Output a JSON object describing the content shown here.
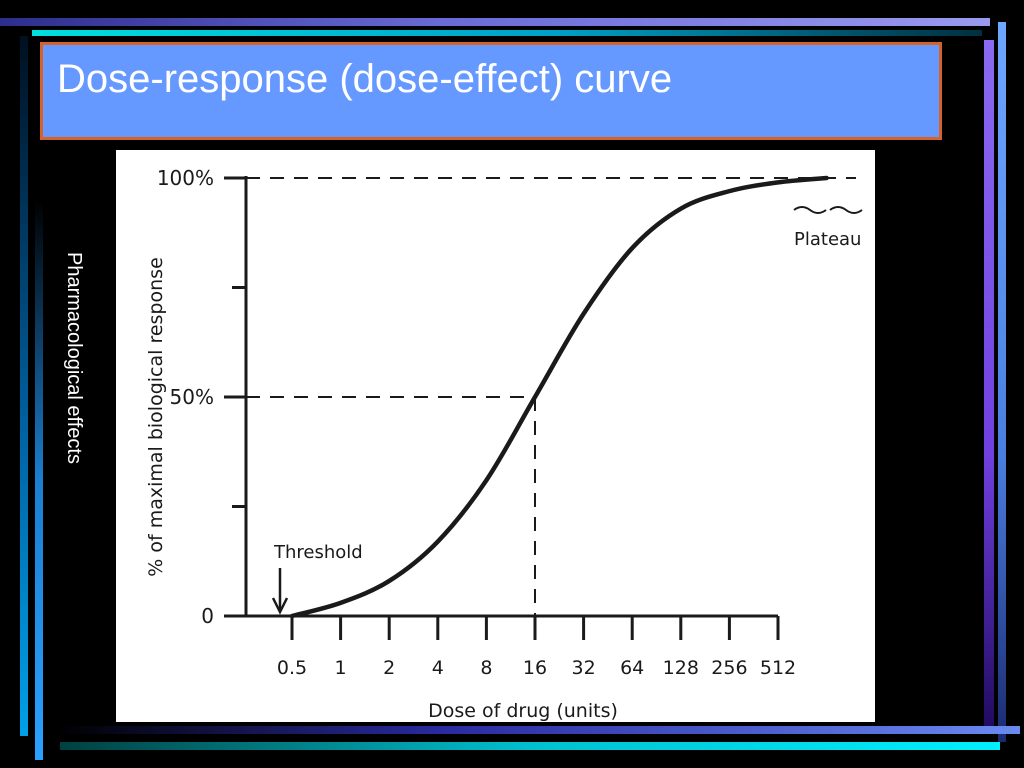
{
  "slide": {
    "title": "Dose-response (dose-effect) curve",
    "side_label": "Pharmacological effects",
    "colors": {
      "title_background": "#6699ff",
      "title_border": "#d4622a",
      "background": "#000000",
      "text": "#ffffff"
    }
  },
  "chart_data": {
    "type": "line",
    "xlabel": "Dose of drug (units)",
    "ylabel": "% of maximal biological response",
    "x_scale": "log2",
    "x_ticks": [
      "0.5",
      "1",
      "2",
      "4",
      "8",
      "16",
      "32",
      "64",
      "128",
      "256",
      "512"
    ],
    "y_ticks": [
      {
        "value": 0,
        "label": "0"
      },
      {
        "value": 50,
        "label": "50%"
      },
      {
        "value": 100,
        "label": "100%"
      }
    ],
    "ylim": [
      0,
      100
    ],
    "xlim": [
      0.5,
      512
    ],
    "series": [
      {
        "x": [
          0.5,
          1,
          2,
          4,
          8,
          16,
          32,
          64,
          128,
          256,
          512,
          1024
        ],
        "y": [
          0,
          3,
          8,
          17,
          31,
          50,
          69,
          84,
          93,
          97,
          99,
          100
        ]
      }
    ],
    "reference_lines": [
      {
        "orientation": "horizontal",
        "y": 100,
        "style": "dashed"
      },
      {
        "orientation": "horizontal",
        "y": 50,
        "style": "dashed"
      },
      {
        "orientation": "vertical",
        "x": 16,
        "style": "dashed"
      }
    ],
    "annotations": [
      {
        "text": "Threshold",
        "x": 0.5,
        "y": 0,
        "arrow": true
      },
      {
        "text": "Plateau",
        "x": 1024,
        "y": 100
      }
    ],
    "grid": false
  }
}
